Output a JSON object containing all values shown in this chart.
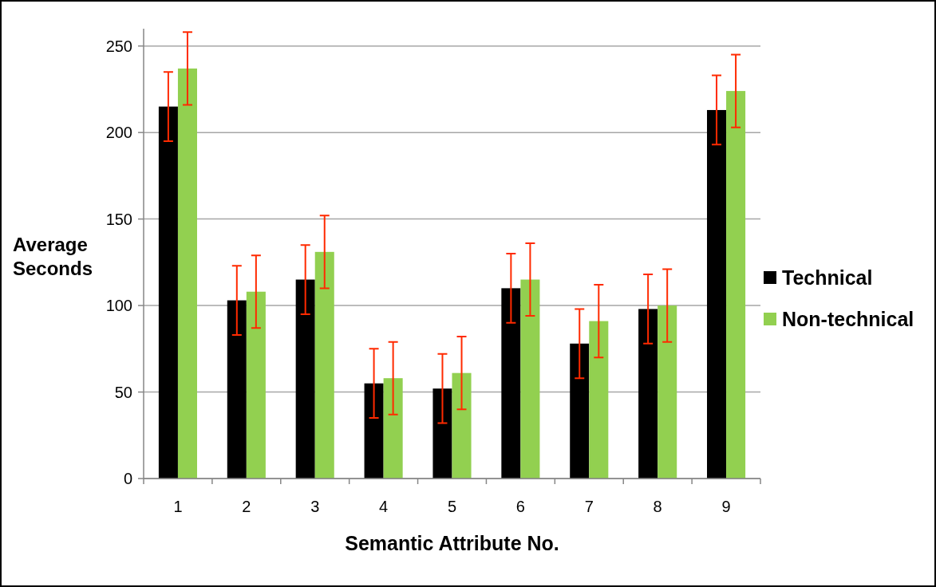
{
  "chart_data": {
    "type": "bar",
    "xlabel": "Semantic Attribute No.",
    "ylabel": "Average Seconds",
    "categories": [
      "1",
      "2",
      "3",
      "4",
      "5",
      "6",
      "7",
      "8",
      "9"
    ],
    "series": [
      {
        "name": "Technical",
        "color": "#000000",
        "values": [
          215,
          103,
          115,
          55,
          52,
          110,
          78,
          98,
          213
        ],
        "errors": [
          20,
          20,
          20,
          20,
          20,
          20,
          20,
          20,
          20
        ]
      },
      {
        "name": "Non-technical",
        "color": "#92d050",
        "values": [
          237,
          108,
          131,
          58,
          61,
          115,
          91,
          100,
          224
        ],
        "errors": [
          21,
          21,
          21,
          21,
          21,
          21,
          21,
          21,
          21
        ]
      }
    ],
    "ylim": [
      0,
      260
    ],
    "yticks": [
      0,
      50,
      100,
      150,
      200,
      250
    ],
    "grid": "y",
    "legend": "right"
  }
}
